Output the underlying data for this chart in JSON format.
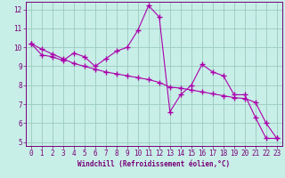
{
  "title": "",
  "xlabel": "Windchill (Refroidissement éolien,°C)",
  "bg_color": "#c8eee8",
  "line_color": "#aa00aa",
  "grid_color": "#99ccbb",
  "axis_color": "#770077",
  "series1_x": [
    0,
    1,
    2,
    3,
    4,
    5,
    6,
    7,
    8,
    9,
    10,
    11,
    12,
    13,
    14,
    15,
    16,
    17,
    18,
    19,
    20,
    21,
    22,
    23
  ],
  "series1_y": [
    10.2,
    9.6,
    9.5,
    9.3,
    9.7,
    9.5,
    9.0,
    9.4,
    9.8,
    10.0,
    10.9,
    12.2,
    11.6,
    6.6,
    7.5,
    8.0,
    9.1,
    8.7,
    8.5,
    7.5,
    7.5,
    6.3,
    5.2,
    5.2
  ],
  "series2_x": [
    0,
    1,
    2,
    3,
    4,
    5,
    6,
    7,
    8,
    9,
    10,
    11,
    12,
    13,
    14,
    15,
    16,
    17,
    18,
    19,
    20,
    21,
    22,
    23
  ],
  "series2_y": [
    10.2,
    9.9,
    9.65,
    9.4,
    9.15,
    9.0,
    8.85,
    8.7,
    8.6,
    8.5,
    8.4,
    8.3,
    8.15,
    7.9,
    7.85,
    7.75,
    7.65,
    7.55,
    7.45,
    7.35,
    7.3,
    7.1,
    6.0,
    5.2
  ],
  "xlim": [
    -0.5,
    23.5
  ],
  "ylim": [
    4.8,
    12.4
  ],
  "yticks": [
    5,
    6,
    7,
    8,
    9,
    10,
    11,
    12
  ],
  "xticks": [
    0,
    1,
    2,
    3,
    4,
    5,
    6,
    7,
    8,
    9,
    10,
    11,
    12,
    13,
    14,
    15,
    16,
    17,
    18,
    19,
    20,
    21,
    22,
    23
  ],
  "marker": "+",
  "markersize": 4,
  "linewidth": 0.8,
  "xlabel_fontsize": 5.5,
  "tick_fontsize": 5.5
}
